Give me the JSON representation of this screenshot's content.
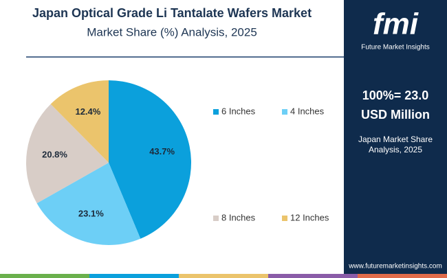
{
  "chart_data": {
    "type": "pie",
    "title": "Japan Optical Grade Li Tantalate Wafers Market",
    "subtitle": "Market Share (%) Analysis, 2025",
    "categories": [
      "6 Inches",
      "4 Inches",
      "8 Inches",
      "12 Inches"
    ],
    "values": [
      43.7,
      23.1,
      20.8,
      12.4
    ],
    "value_labels": [
      "43.7%",
      "23.1%",
      "20.8%",
      "12.4%"
    ],
    "colors": [
      "#0ba0dc",
      "#6dcff6",
      "#d8cdc7",
      "#ebc46c"
    ]
  },
  "sidebar": {
    "logo": "fmi",
    "brand": "Future Market Insights",
    "total": "100%= 23.0",
    "unit": "USD Million",
    "caption": "Japan Market Share Analysis, 2025",
    "website": "www.futuremarketinsights.com"
  }
}
